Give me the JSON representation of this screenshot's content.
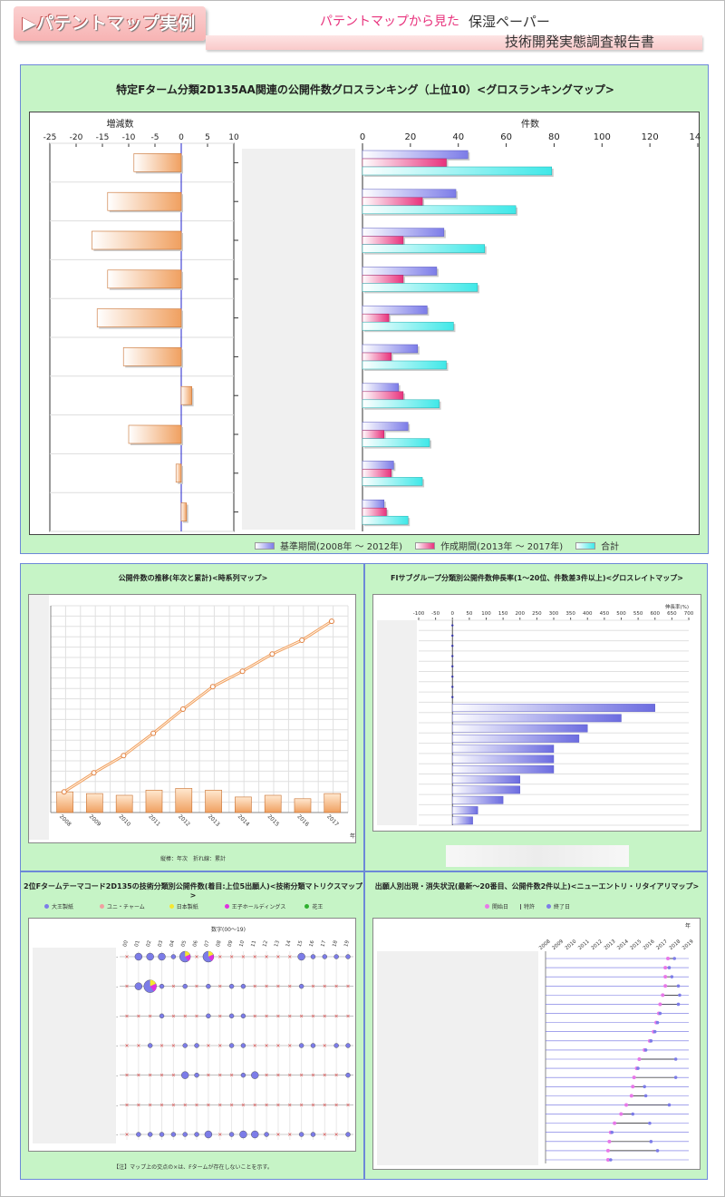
{
  "header": {
    "title": "▶パテントマップ実例",
    "subtitle": "パテントマップから見た",
    "report_line1": "保湿ペーパー",
    "report_line2": "技術開発実態調査報告書"
  },
  "colors": {
    "panel_bg": "#c6f4c6",
    "panel_border": "#6c88d8",
    "orange": "#f2a060",
    "blue": "#7c7ce8",
    "pink": "#e8337d",
    "cyan": "#3fe8e8"
  },
  "ranking": {
    "title": "特定Fターム分類2D135AA関連の公開件数グロスランキング（上位10）<グロスランキングマップ>",
    "change_axis_label": "増減数",
    "count_axis_label": "件数",
    "change_ticks": [
      "-25",
      "-20",
      "-15",
      "-10",
      "-5",
      "0",
      "5",
      "10"
    ],
    "count_ticks": [
      "0",
      "20",
      "40",
      "60",
      "80",
      "100",
      "120",
      "140"
    ],
    "legend": [
      "基準期間(2008年 ～ 2012年)",
      "作成期間(2013年 ～ 2017年)",
      "合計"
    ]
  },
  "timeseries": {
    "title": "公開件数の推移(年次と累計)<時系列マップ>",
    "note": "縦棒：年次　折れ線：累計",
    "x_unit": "年",
    "years": [
      "2008",
      "2009",
      "2010",
      "2011",
      "2012",
      "2013",
      "2014",
      "2015",
      "2016",
      "2017"
    ]
  },
  "growth": {
    "title": "FIサブグループ分類別公開件数伸長率(1～20位、件数差3件以上)<グロスレイトマップ>",
    "axis_label": "伸長率(%)",
    "ticks": [
      "-100",
      "-50",
      "0",
      "50",
      "100",
      "150",
      "200",
      "250",
      "300",
      "350",
      "400",
      "450",
      "500",
      "550",
      "600",
      "650",
      "700"
    ]
  },
  "matrix": {
    "title": "2位Fタームテーマコード2D135の技術分類別公開件数(着目:上位5出願人)<技術分類マトリクスマップ>",
    "applicants": [
      "大王製紙",
      "ユニ・チャーム",
      "日本製紙",
      "王子ホールディングス",
      "花王"
    ],
    "axis_label": "数字(00～19)",
    "columns": [
      "00",
      "01",
      "02",
      "03",
      "04",
      "05",
      "06",
      "07",
      "08",
      "09",
      "10",
      "11",
      "12",
      "13",
      "14",
      "15",
      "16",
      "17",
      "18",
      "19"
    ],
    "note": "【注】マップ上の交点の×は、Fタームが存在しないことを示す。"
  },
  "entry": {
    "title": "出願人別出現・消失状況(最新～20番目、公開件数2件以上)<ニューエントリ・リタイアリマップ>",
    "legend": [
      "開始日",
      "特許",
      "終了日"
    ],
    "x_unit": "年",
    "years": [
      "2008",
      "2009",
      "2010",
      "2011",
      "2012",
      "2013",
      "2014",
      "2015",
      "2016",
      "2017",
      "2018",
      "2019"
    ]
  },
  "chart_data": [
    {
      "type": "bar",
      "title": "特定Fターム分類2D135AA関連の公開件数グロスランキング（上位10）<グロスランキングマップ>",
      "orientation": "horizontal",
      "xlabel": "件数",
      "xlim": [
        0,
        140
      ],
      "series": [
        {
          "name": "基準期間(2008年 ～ 2012年)",
          "values": [
            44,
            39,
            34,
            31,
            27,
            23,
            15,
            19,
            13,
            9
          ]
        },
        {
          "name": "作成期間(2013年 ～ 2017年)",
          "values": [
            35,
            25,
            17,
            17,
            11,
            12,
            17,
            9,
            12,
            10
          ]
        },
        {
          "name": "合計",
          "values": [
            79,
            64,
            51,
            48,
            38,
            35,
            32,
            28,
            25,
            19
          ]
        }
      ],
      "change": {
        "label": "増減数",
        "xlim": [
          -25,
          10
        ],
        "values": [
          -9,
          -14,
          -17,
          -14,
          -16,
          -11,
          2,
          -10,
          -1,
          1
        ]
      }
    },
    {
      "type": "bar",
      "title": "公開件数の推移(年次と累計)<時系列マップ>",
      "categories": [
        "2008",
        "2009",
        "2010",
        "2011",
        "2012",
        "2013",
        "2014",
        "2015",
        "2016",
        "2017"
      ],
      "ylim": [
        0,
        120
      ],
      "series": [
        {
          "name": "年次",
          "values": [
            12,
            11,
            10,
            13,
            14,
            13,
            9,
            10,
            8,
            11
          ]
        },
        {
          "name": "累計",
          "values": [
            12,
            23,
            33,
            46,
            60,
            73,
            82,
            92,
            100,
            111
          ]
        }
      ]
    },
    {
      "type": "bar",
      "title": "FIサブグループ分類別公開件数伸長率(1～20位、件数差3件以上)<グロスレイトマップ>",
      "orientation": "horizontal",
      "xlabel": "伸長率(%)",
      "xlim": [
        -100,
        700
      ],
      "values": [
        0,
        0,
        0,
        0,
        0,
        0,
        0,
        0,
        600,
        500,
        400,
        375,
        300,
        300,
        300,
        200,
        200,
        150,
        75,
        60
      ]
    },
    {
      "type": "scatter",
      "title": "2位Fタームテーマコード2D135の技術分類別公開件数(着目:上位5出願人)<技術分類マトリクスマップ>",
      "rows": 7,
      "columns": [
        "00",
        "01",
        "02",
        "03",
        "04",
        "05",
        "06",
        "07",
        "08",
        "09",
        "10",
        "11",
        "12",
        "13",
        "14",
        "15",
        "16",
        "17",
        "18",
        "19"
      ],
      "sizes": [
        [
          0,
          2,
          2,
          2,
          1,
          3,
          0,
          3,
          0,
          0,
          0,
          0,
          0,
          0,
          0,
          2,
          1,
          1,
          1,
          1
        ],
        [
          0,
          2,
          4,
          1,
          0,
          1,
          0,
          1,
          0,
          1,
          1,
          0,
          0,
          0,
          0,
          1,
          0,
          0,
          0,
          0
        ],
        [
          0,
          0,
          0,
          1,
          0,
          0,
          0,
          1,
          0,
          1,
          1,
          0,
          0,
          0,
          0,
          0,
          0,
          0,
          0,
          0
        ],
        [
          0,
          0,
          1,
          0,
          0,
          1,
          1,
          0,
          0,
          1,
          1,
          0,
          0,
          0,
          0,
          1,
          1,
          0,
          1,
          1
        ],
        [
          0,
          0,
          0,
          0,
          0,
          2,
          1,
          0,
          0,
          0,
          1,
          2,
          0,
          0,
          0,
          0,
          0,
          0,
          0,
          1
        ],
        [
          0,
          0,
          0,
          0,
          0,
          0,
          0,
          0,
          0,
          0,
          0,
          0,
          0,
          0,
          0,
          0,
          0,
          0,
          0,
          0
        ],
        [
          0,
          1,
          1,
          1,
          1,
          1,
          1,
          2,
          0,
          1,
          2,
          2,
          1,
          0,
          0,
          1,
          1,
          0,
          0,
          1
        ]
      ]
    },
    {
      "type": "scatter",
      "title": "出願人別出現・消失状況(最新～20番目、公開件数2件以上)<ニューエントリ・リタイアリマップ>",
      "x": [
        "2008",
        "2009",
        "2010",
        "2011",
        "2012",
        "2013",
        "2014",
        "2015",
        "2016",
        "2017",
        "2018",
        "2019"
      ],
      "ranges": [
        [
          2017.4,
          2017.9
        ],
        [
          2017.2,
          2017.5
        ],
        [
          2017.2,
          2017.7
        ],
        [
          2017.2,
          2018.2
        ],
        [
          2017.0,
          2018.3
        ],
        [
          2016.8,
          2018.2
        ],
        [
          2016.7,
          2016.8
        ],
        [
          2016.5,
          2016.6
        ],
        [
          2016.3,
          2016.4
        ],
        [
          2016.0,
          2016.1
        ],
        [
          2015.6,
          2015.7
        ],
        [
          2015.2,
          2018.0
        ],
        [
          2015.0,
          2015.1
        ],
        [
          2014.8,
          2018.0
        ],
        [
          2014.7,
          2015.6
        ],
        [
          2014.6,
          2015.7
        ],
        [
          2014.2,
          2017.5
        ],
        [
          2013.8,
          2014.7
        ],
        [
          2013.3,
          2016.0
        ],
        [
          2013.0,
          2013.1
        ],
        [
          2012.9,
          2016.1
        ],
        [
          2012.8,
          2016.6
        ],
        [
          2012.8,
          2013.0
        ]
      ]
    }
  ]
}
